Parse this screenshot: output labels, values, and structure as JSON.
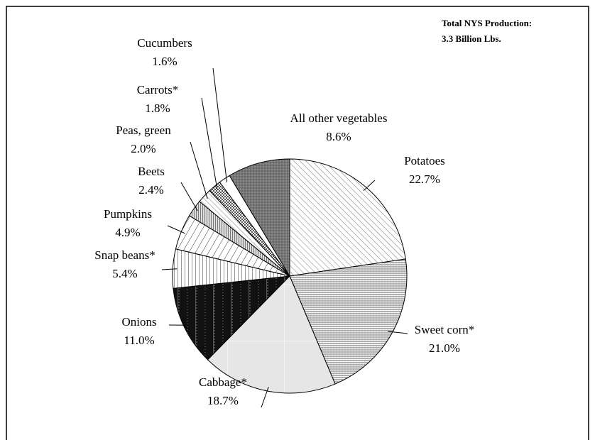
{
  "chart_data": {
    "type": "pie",
    "annotations": [
      "Total NYS Production:",
      "3.3 Billion Lbs."
    ],
    "categories": [
      "Potatoes",
      "Sweet corn*",
      "Cabbage*",
      "Onions",
      "Snap beans*",
      "Pumpkins",
      "Beets",
      "Peas, green",
      "Carrots*",
      "Cucumbers",
      "All other vegetables"
    ],
    "values": [
      22.7,
      21.0,
      18.7,
      11.0,
      5.4,
      4.9,
      2.4,
      2.0,
      1.8,
      1.6,
      8.6
    ],
    "value_labels": [
      "22.7%",
      "21.0%",
      "18.7%",
      "11.0%",
      "5.4%",
      "4.9%",
      "2.4%",
      "2.0%",
      "1.8%",
      "1.6%",
      "8.6%"
    ]
  }
}
